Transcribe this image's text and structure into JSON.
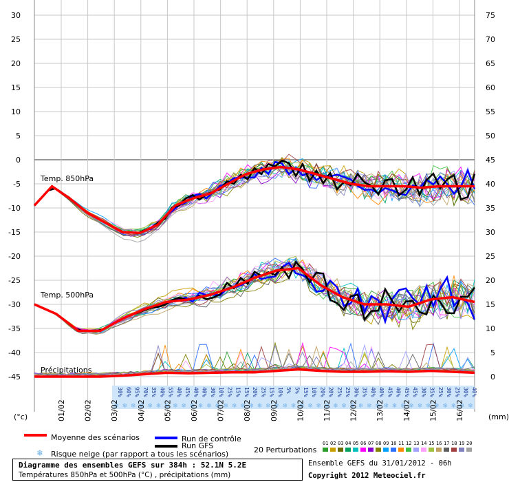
{
  "chart_data": {
    "type": "line",
    "left_axis": {
      "unit": "(°c)",
      "ticks": [
        30,
        25,
        20,
        15,
        10,
        5,
        0,
        -5,
        -10,
        -15,
        -20,
        -25,
        -30,
        -35,
        -40,
        -45
      ],
      "range": [
        -45,
        30
      ]
    },
    "right_axis": {
      "unit": "(mm)",
      "ticks": [
        75,
        70,
        65,
        60,
        55,
        50,
        45,
        40,
        35,
        30,
        25,
        20,
        15,
        10,
        5,
        0
      ]
    },
    "x_dates": [
      "01/02",
      "02/02",
      "03/02",
      "04/02",
      "05/02",
      "06/02",
      "07/02",
      "08/02",
      "09/02",
      "10/02",
      "11/02",
      "12/02",
      "13/02",
      "14/02",
      "15/02",
      "16/02"
    ],
    "annotations": [
      "Temp. 850hPa",
      "Temp. 500hPa",
      "Précipitations"
    ],
    "snow_risk_pct": [
      "30%",
      "60%",
      "95%",
      "70%",
      "35%",
      "40%",
      "55%",
      "40%",
      "45%",
      "40%",
      "40%",
      "30%",
      "10%",
      "25%",
      "15%",
      "15%",
      "20%",
      "25%",
      "15%",
      "10%",
      "5%",
      "5%",
      "15%",
      "10%",
      "20%",
      "20%",
      "25%",
      "25%",
      "30%",
      "35%",
      "40%",
      "40%",
      "45%",
      "40%",
      "45%",
      "45%",
      "30%",
      "35%",
      "25%",
      "30%",
      "25%",
      "30%",
      "40%"
    ],
    "series": [
      {
        "name": "Moyenne des scénarios",
        "color": "#ff0000",
        "t850": [
          -9.5,
          -5.5,
          -8,
          -11,
          -13,
          -15,
          -15.2,
          -13.5,
          -9.5,
          -8,
          -7,
          -5,
          -3,
          -2,
          -1.5,
          -2,
          -3,
          -4,
          -5,
          -5.5,
          -5.5,
          -5.5,
          -5.8,
          -5.5,
          -5.5,
          -5.5
        ],
        "t500": [
          -30,
          -32,
          -35.5,
          -35.5,
          -33,
          -31,
          -29.5,
          -29,
          -28,
          -26.5,
          -24.5,
          -23,
          -22.5,
          -26,
          -28.5,
          -30,
          -30,
          -30.5,
          -29,
          -28.5,
          -29.5
        ],
        "precip": [
          0,
          0,
          0,
          0,
          0.2,
          0.5,
          0.8,
          0.7,
          0.8,
          0.9,
          0.9,
          1.2,
          1.5,
          1.2,
          1.0,
          1.0,
          1.1,
          1.0,
          1.2,
          1.0,
          0.8
        ]
      },
      {
        "name": "Run de contrôle",
        "color": "#0000ff"
      },
      {
        "name": "Run GFS",
        "color": "#000000"
      }
    ],
    "perturbations": {
      "label": "20 Perturbations",
      "count": 20,
      "numbers": [
        "01",
        "02",
        "03",
        "04",
        "05",
        "06",
        "07",
        "08",
        "09",
        "10",
        "11",
        "12",
        "13",
        "14",
        "15",
        "16",
        "17",
        "18",
        "19",
        "20"
      ],
      "colors": [
        "#2a9d2a",
        "#c8a000",
        "#6a6a00",
        "#00a060",
        "#00c0c0",
        "#ff00ff",
        "#8800cc",
        "#808000",
        "#00a0ff",
        "#3070ff",
        "#ff8800",
        "#40c040",
        "#a0a0ff",
        "#ffa0ff",
        "#a0c040",
        "#c0a060",
        "#606060",
        "#a04040",
        "#8080c0",
        "#a0a0a0"
      ]
    },
    "legend": {
      "mean": "Moyenne des scénarios",
      "control": "Run de contrôle",
      "gfs": "Run GFS",
      "snow": "Risque neige (par rapport a tous les scénarios)"
    }
  },
  "footer": {
    "title": "Diagramme des ensembles GEFS sur 384h : 52.1N 5.2E",
    "subtitle": "Températures 850hPa et 500hPa (°C) , précipitations (mm)",
    "run_info": "Ensemble GEFS du 31/01/2012 - 06h",
    "copyright": "Copyright 2012 Meteociel.fr"
  }
}
